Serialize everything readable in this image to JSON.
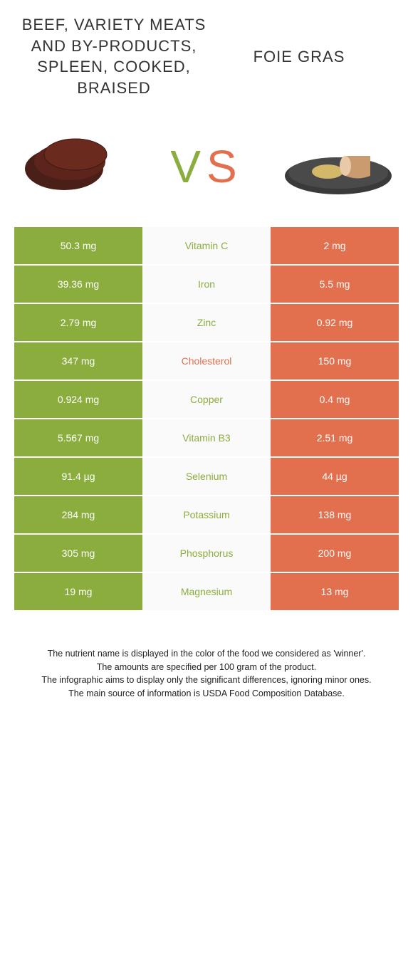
{
  "colors": {
    "green": "#8aad3d",
    "orange": "#e2704e",
    "mid_bg": "#fafafa",
    "row_border": "#ffffff",
    "cell_text": "#ffffff"
  },
  "left": {
    "title": "BEEF, VARIETY MEATS AND BY-PRODUCTS, SPLEEN, COOKED, BRAISED"
  },
  "right": {
    "title": "FOIE GRAS"
  },
  "vs": {
    "v": "V",
    "s": "S"
  },
  "rows": [
    {
      "left": "50.3 mg",
      "label": "Vitamin C",
      "right": "2 mg",
      "winner": "left"
    },
    {
      "left": "39.36 mg",
      "label": "Iron",
      "right": "5.5 mg",
      "winner": "left"
    },
    {
      "left": "2.79 mg",
      "label": "Zinc",
      "right": "0.92 mg",
      "winner": "left"
    },
    {
      "left": "347 mg",
      "label": "Cholesterol",
      "right": "150 mg",
      "winner": "right"
    },
    {
      "left": "0.924 mg",
      "label": "Copper",
      "right": "0.4 mg",
      "winner": "left"
    },
    {
      "left": "5.567 mg",
      "label": "Vitamin B3",
      "right": "2.51 mg",
      "winner": "left"
    },
    {
      "left": "91.4 µg",
      "label": "Selenium",
      "right": "44 µg",
      "winner": "left"
    },
    {
      "left": "284 mg",
      "label": "Potassium",
      "right": "138 mg",
      "winner": "left"
    },
    {
      "left": "305 mg",
      "label": "Phosphorus",
      "right": "200 mg",
      "winner": "left"
    },
    {
      "left": "19 mg",
      "label": "Magnesium",
      "right": "13 mg",
      "winner": "left"
    }
  ],
  "footer": {
    "l1": "The nutrient name is displayed in the color of the food we considered as 'winner'.",
    "l2": "The amounts are specified per 100 gram of the product.",
    "l3": "The infographic aims to display only the significant differences, ignoring minor ones.",
    "l4": "The main source of information is USDA Food Composition Database."
  }
}
